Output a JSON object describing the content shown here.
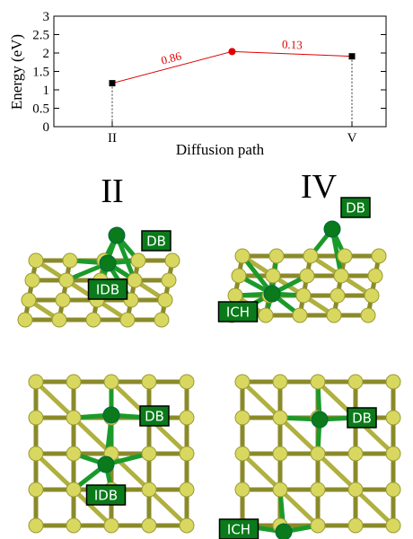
{
  "chart_data": {
    "type": "line",
    "x_label": "Diffusion path",
    "y_label": "Energy (eV)",
    "categories": [
      "II",
      null,
      "V"
    ],
    "series": [
      {
        "color": "#e00000",
        "marker_colors": [
          "#000000",
          "#e00000",
          "#000000"
        ],
        "values": [
          1.18,
          2.04,
          1.91
        ]
      }
    ],
    "annotations": [
      "0.86",
      "0.13"
    ],
    "ylim": [
      0,
      3
    ],
    "yticks": [
      0,
      0.5,
      1,
      1.5,
      2,
      2.5,
      3
    ],
    "drop_lines": true
  },
  "panels": [
    {
      "title": "II",
      "labels": [
        "DB",
        "IDB"
      ]
    },
    {
      "title": "IV",
      "labels": [
        "DB",
        "ICH"
      ]
    },
    {
      "labels": [
        "DB",
        "IDB"
      ]
    },
    {
      "labels": [
        "DB",
        "ICH"
      ]
    }
  ]
}
